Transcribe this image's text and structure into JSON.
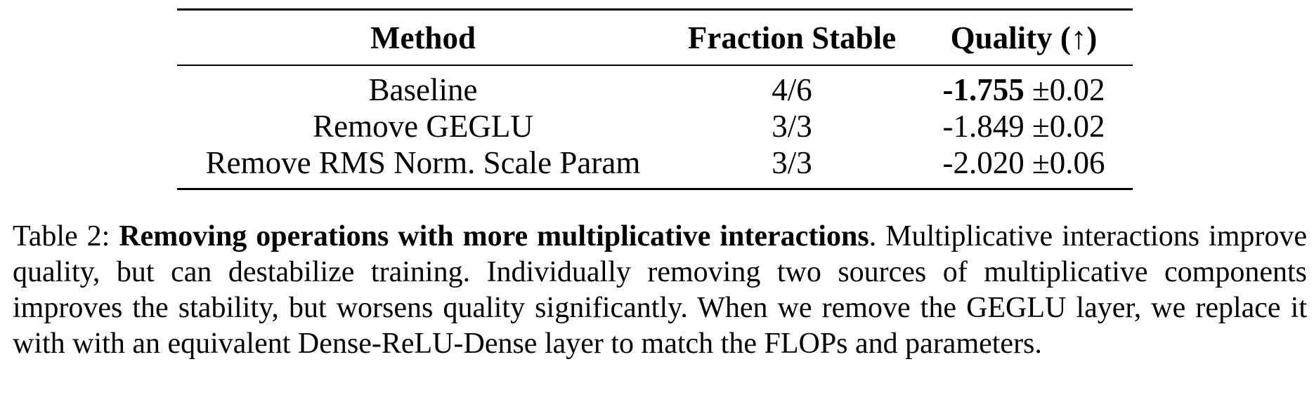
{
  "table": {
    "headers": {
      "method": "Method",
      "fraction_stable": "Fraction Stable",
      "quality": "Quality (↑)"
    },
    "rows": [
      {
        "method": "Baseline",
        "fraction_stable": "4/6",
        "quality_value": "-1.755",
        "quality_err": "±0.02",
        "best": true
      },
      {
        "method": "Remove GEGLU",
        "fraction_stable": "3/3",
        "quality_value": "-1.849",
        "quality_err": "±0.02",
        "best": false
      },
      {
        "method": "Remove RMS Norm. Scale Param",
        "fraction_stable": "3/3",
        "quality_value": "-2.020",
        "quality_err": "±0.06",
        "best": false
      }
    ]
  },
  "caption": {
    "label": "Table 2:",
    "title": "Removing operations with more multiplicative interactions",
    "body": ". Multiplicative interactions improve quality, but can destabilize training. Individually removing two sources of multiplicative components improves the stability, but worsens quality significantly. When we remove the GEGLU layer, we replace it with with an equivalent Dense-ReLU-Dense layer to match the FLOPs and parameters."
  }
}
